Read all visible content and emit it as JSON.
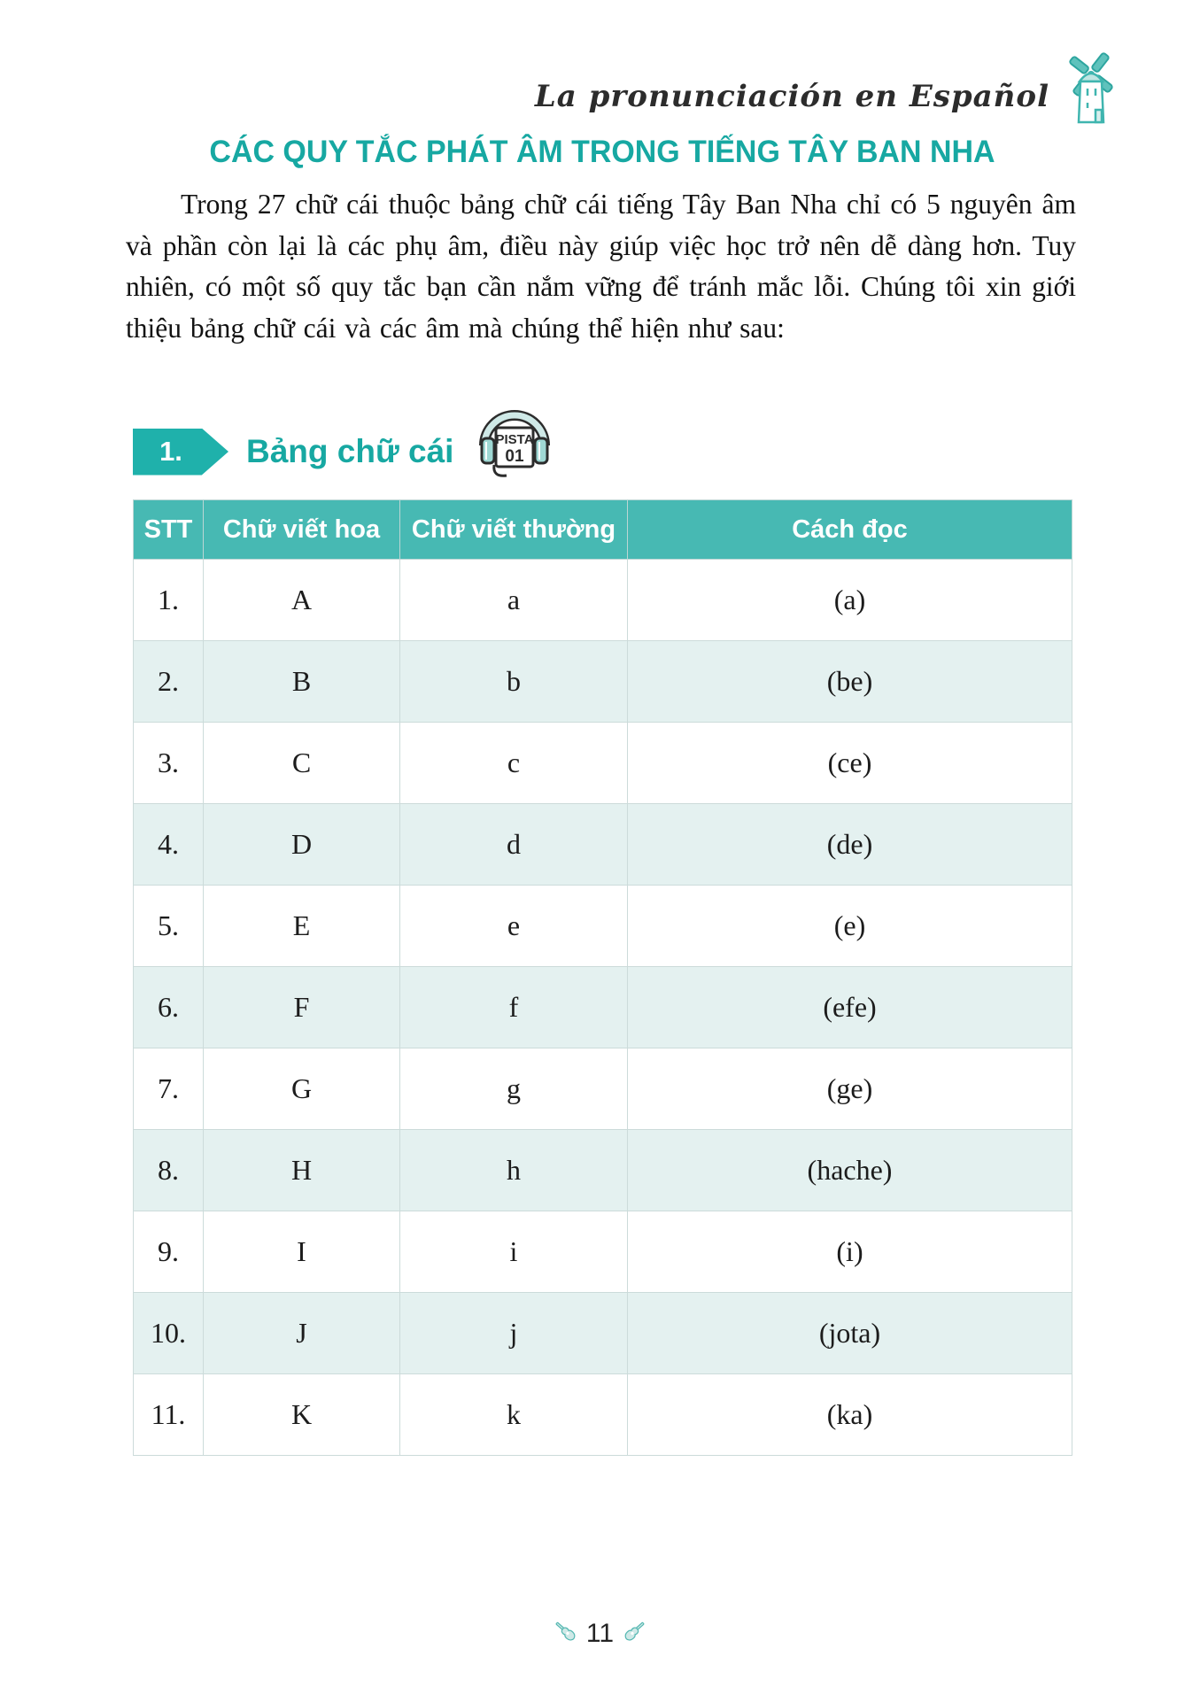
{
  "header": {
    "script_title": "La pronunciación en Español"
  },
  "title": "CÁC QUY TẮC PHÁT ÂM TRONG TIẾNG TÂY BAN NHA",
  "intro_paragraph": "Trong 27 chữ cái thuộc bảng chữ cái tiếng Tây Ban Nha chỉ có 5 nguyên âm và phần còn lại là các phụ âm, điều này giúp việc học trở nên dễ dàng hơn. Tuy nhiên, có một số quy tắc bạn cần nắm vững để tránh mắc lỗi. Chúng tôi xin giới thiệu bảng chữ cái và các âm mà chúng thể hiện như sau:",
  "section": {
    "number": "1.",
    "title": "Bảng chữ cái",
    "audio": {
      "label_top": "PISTA",
      "label_number": "01"
    }
  },
  "table": {
    "headers": [
      "STT",
      "Chữ viết hoa",
      "Chữ viết thường",
      "Cách đọc"
    ],
    "rows": [
      [
        "1.",
        "A",
        "a",
        "(a)"
      ],
      [
        "2.",
        "B",
        "b",
        "(be)"
      ],
      [
        "3.",
        "C",
        "c",
        "(ce)"
      ],
      [
        "4.",
        "D",
        "d",
        "(de)"
      ],
      [
        "5.",
        "E",
        "e",
        "(e)"
      ],
      [
        "6.",
        "F",
        "f",
        "(efe)"
      ],
      [
        "7.",
        "G",
        "g",
        "(ge)"
      ],
      [
        "8.",
        "H",
        "h",
        "(hache)"
      ],
      [
        "9.",
        "I",
        "i",
        "(i)"
      ],
      [
        "10.",
        "J",
        "j",
        "(jota)"
      ],
      [
        "11.",
        "K",
        "k",
        "(ka)"
      ]
    ]
  },
  "footer": {
    "page_number": "11"
  },
  "colors": {
    "accent_teal": "#17a8a2",
    "badge_teal": "#1fb1ab",
    "table_header_bg": "#47b9b3",
    "row_alt_bg": "#e4f1f0",
    "script_text": "#2c2c2c"
  }
}
